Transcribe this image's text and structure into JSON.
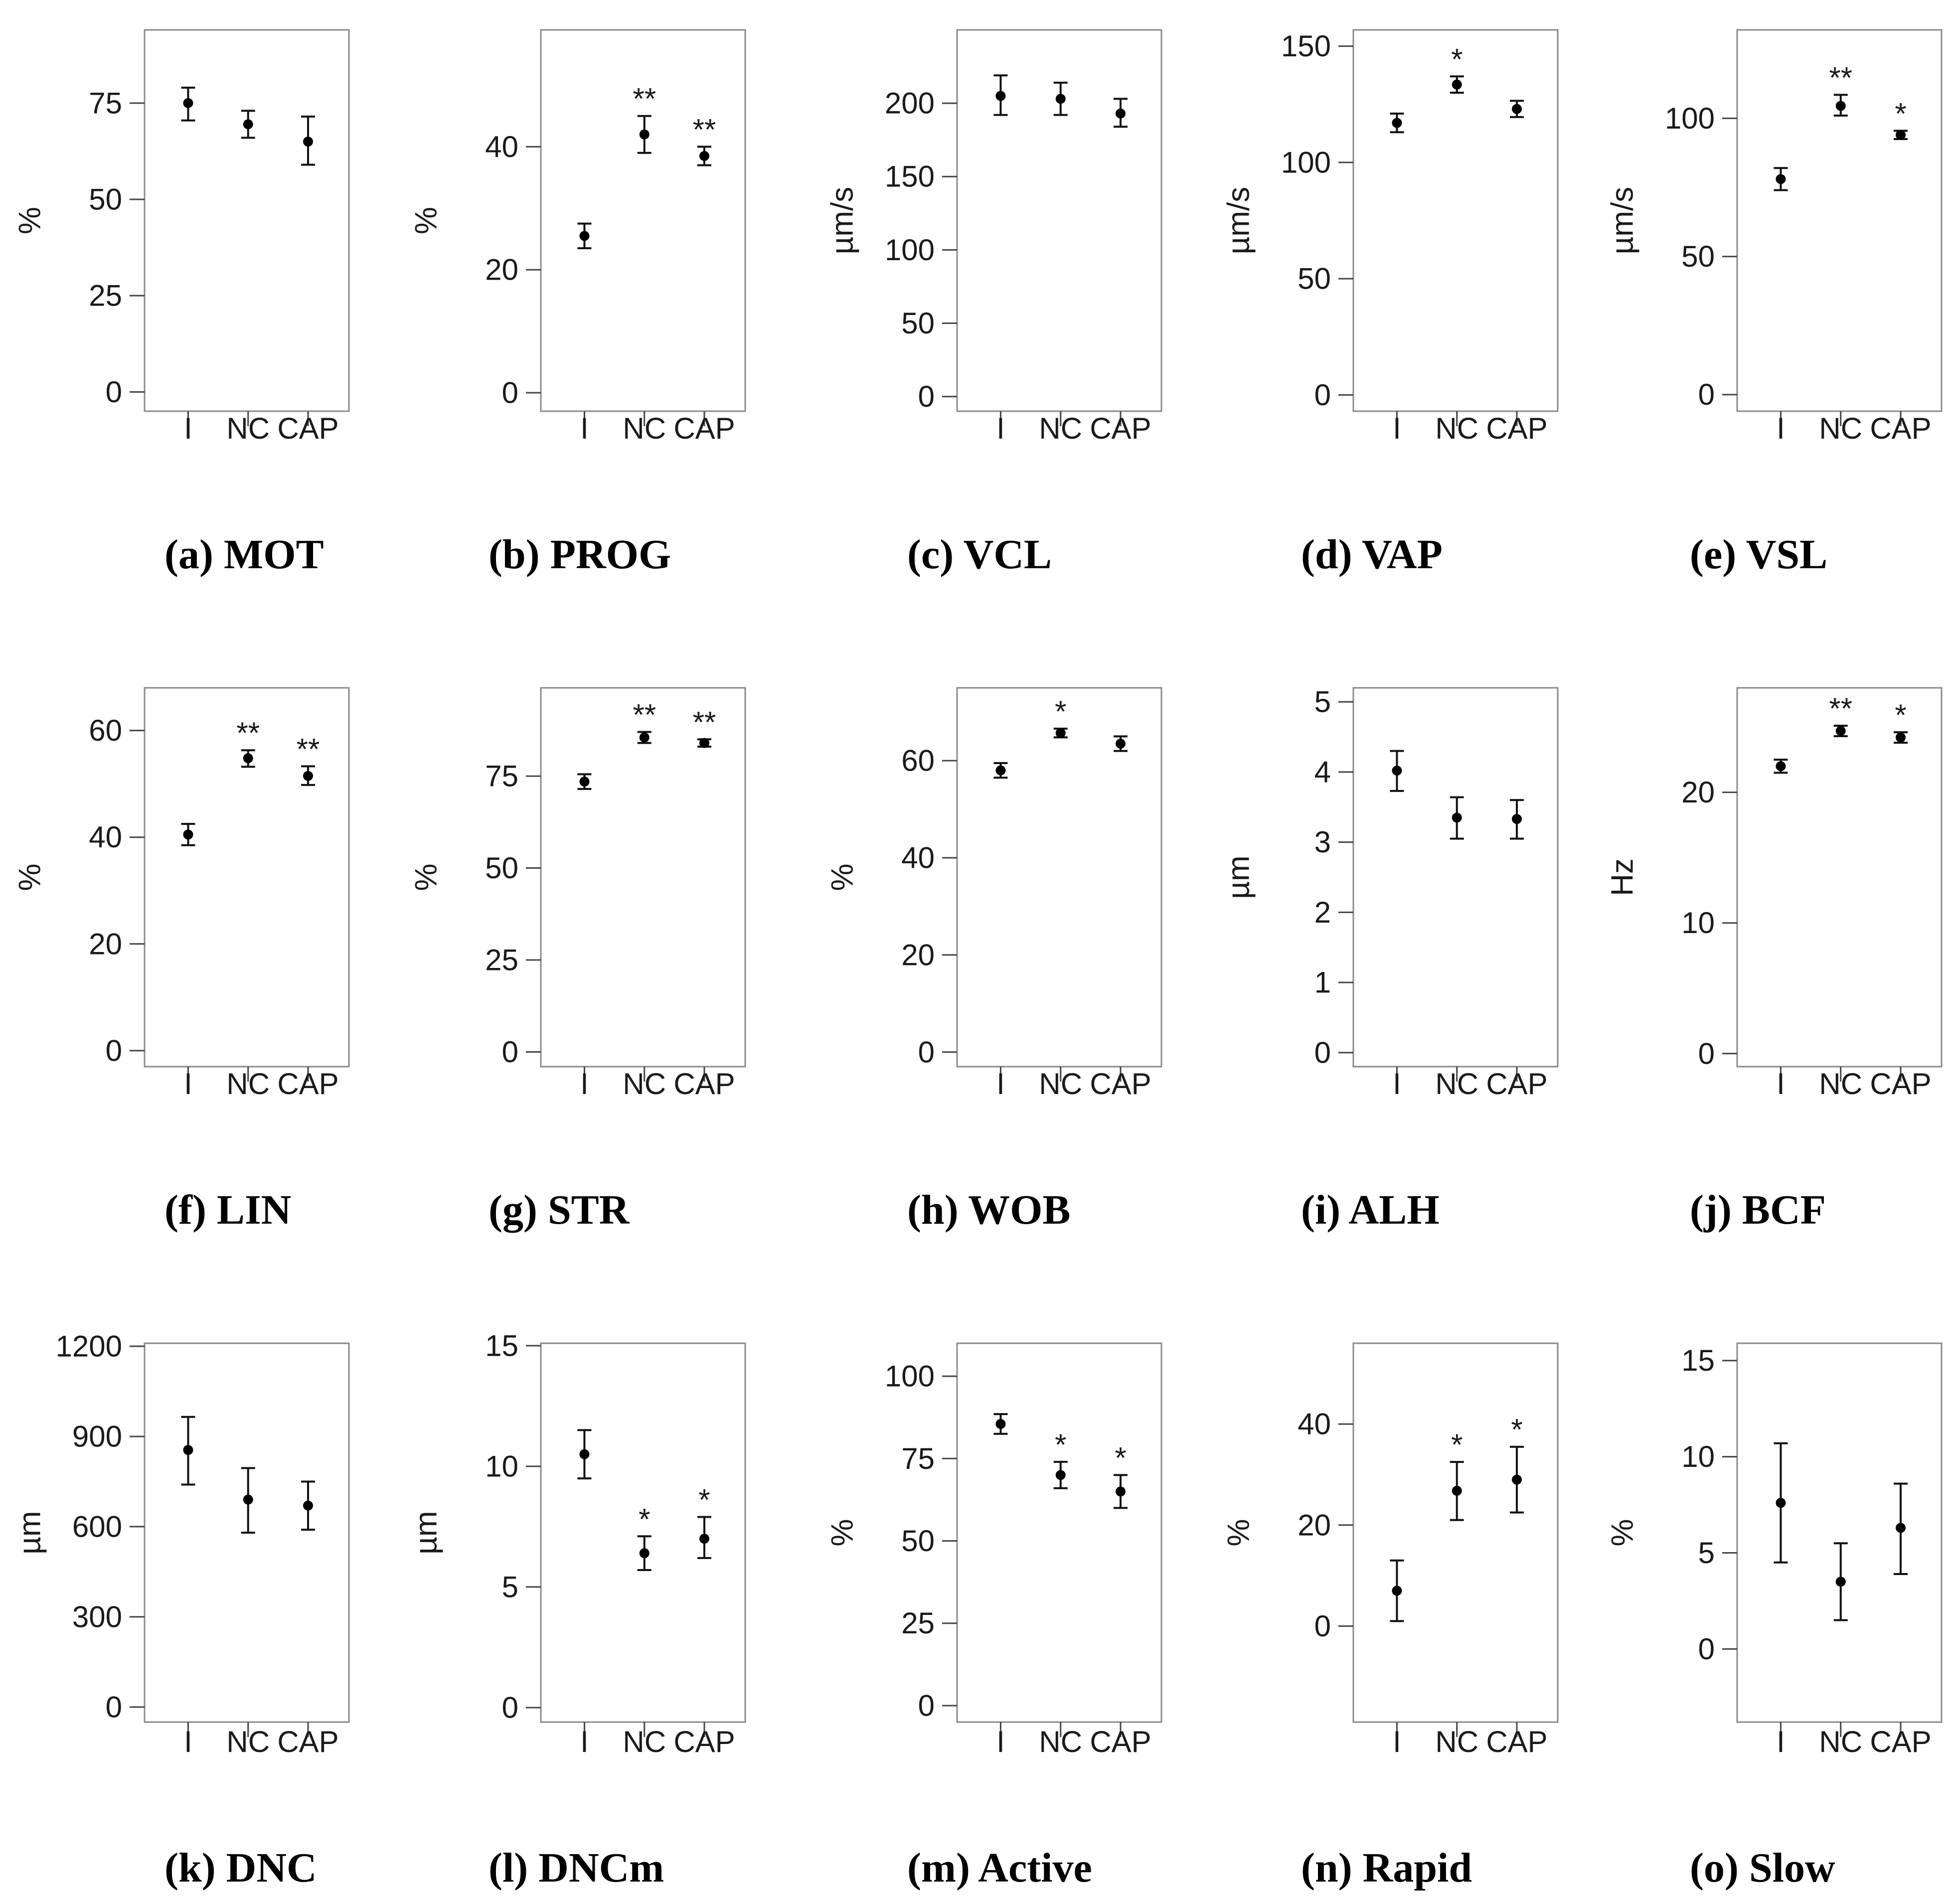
{
  "style": {
    "point_color": "#000000",
    "frame_color": "#8a8a8a",
    "text_color": "#1a1a1a"
  },
  "chart_data": [
    {
      "id": "mot",
      "type": "scatter",
      "caption": "(a) MOT",
      "ylabel": "%",
      "categories": [
        "I",
        "NC",
        "CAP"
      ],
      "ylim": [
        -5,
        94
      ],
      "yticks": [
        0,
        25,
        50,
        75
      ],
      "values": [
        75,
        69.5,
        65
      ],
      "err_low": [
        70.5,
        66,
        59
      ],
      "err_high": [
        79,
        73,
        71.5
      ],
      "sig": [
        "",
        "",
        ""
      ]
    },
    {
      "id": "prog",
      "type": "scatter",
      "caption": "(b) PROG",
      "ylabel": "%",
      "categories": [
        "I",
        "NC",
        "CAP"
      ],
      "ylim": [
        -3,
        59
      ],
      "yticks": [
        0,
        20,
        40
      ],
      "values": [
        25.5,
        42,
        38.5
      ],
      "err_low": [
        23.5,
        39,
        37
      ],
      "err_high": [
        27.5,
        45,
        40
      ],
      "sig": [
        "",
        "**",
        "**"
      ]
    },
    {
      "id": "vcl",
      "type": "scatter",
      "caption": "(c) VCL",
      "ylabel": "µm/s",
      "categories": [
        "I",
        "NC",
        "CAP"
      ],
      "ylim": [
        -10,
        250
      ],
      "yticks": [
        0,
        50,
        100,
        150,
        200
      ],
      "values": [
        205,
        203,
        193
      ],
      "err_low": [
        192,
        192,
        184
      ],
      "err_high": [
        219,
        214,
        203
      ],
      "sig": [
        "",
        "",
        ""
      ]
    },
    {
      "id": "vap",
      "type": "scatter",
      "caption": "(d) VAP",
      "ylabel": "µm/s",
      "categories": [
        "I",
        "NC",
        "CAP"
      ],
      "ylim": [
        -7,
        157
      ],
      "yticks": [
        0,
        50,
        100,
        150
      ],
      "values": [
        117,
        133.5,
        123
      ],
      "err_low": [
        113,
        130,
        119.5
      ],
      "err_high": [
        121,
        137,
        126.5
      ],
      "sig": [
        "",
        "*",
        ""
      ]
    },
    {
      "id": "vsl",
      "type": "scatter",
      "caption": "(e) VSL",
      "ylabel": "µm/s",
      "categories": [
        "I",
        "NC",
        "CAP"
      ],
      "ylim": [
        -6,
        132
      ],
      "yticks": [
        0,
        50,
        100
      ],
      "values": [
        78,
        104.5,
        94
      ],
      "err_low": [
        74,
        101,
        92.5
      ],
      "err_high": [
        82,
        108.5,
        95.5
      ],
      "sig": [
        "",
        "**",
        "*"
      ]
    },
    {
      "id": "lin",
      "type": "scatter",
      "caption": "(f) LIN",
      "ylabel": "%",
      "categories": [
        "I",
        "NC",
        "CAP"
      ],
      "ylim": [
        -3,
        68
      ],
      "yticks": [
        0,
        20,
        40,
        60
      ],
      "values": [
        40.5,
        54.8,
        51.5
      ],
      "err_low": [
        38.5,
        53.2,
        49.8
      ],
      "err_high": [
        42.5,
        56.3,
        53.3
      ],
      "sig": [
        "",
        "**",
        "**"
      ]
    },
    {
      "id": "str",
      "type": "scatter",
      "caption": "(g) STR",
      "ylabel": "%",
      "categories": [
        "I",
        "NC",
        "CAP"
      ],
      "ylim": [
        -4,
        99
      ],
      "yticks": [
        0,
        25,
        50,
        75
      ],
      "values": [
        73.5,
        85.5,
        84
      ],
      "err_low": [
        71.5,
        84,
        83
      ],
      "err_high": [
        75.5,
        87,
        85
      ],
      "sig": [
        "",
        "**",
        "**"
      ]
    },
    {
      "id": "wob",
      "type": "scatter",
      "caption": "(h) WOB",
      "ylabel": "%",
      "categories": [
        "I",
        "NC",
        "CAP"
      ],
      "ylim": [
        -3,
        75
      ],
      "yticks": [
        0,
        20,
        40,
        60
      ],
      "values": [
        58,
        65.7,
        63.5
      ],
      "err_low": [
        56.5,
        64.8,
        62
      ],
      "err_high": [
        59.5,
        66.6,
        65
      ],
      "sig": [
        "",
        "*",
        ""
      ]
    },
    {
      "id": "alh",
      "type": "scatter",
      "caption": "(i) ALH",
      "ylabel": "µm",
      "categories": [
        "I",
        "NC",
        "CAP"
      ],
      "ylim": [
        -0.2,
        5.2
      ],
      "yticks": [
        0,
        1,
        2,
        3,
        4,
        5
      ],
      "values": [
        4.02,
        3.35,
        3.33
      ],
      "err_low": [
        3.73,
        3.05,
        3.05
      ],
      "err_high": [
        4.3,
        3.64,
        3.6
      ],
      "sig": [
        "",
        "",
        ""
      ]
    },
    {
      "id": "bcf",
      "type": "scatter",
      "caption": "(j) BCF",
      "ylabel": "Hz",
      "categories": [
        "I",
        "NC",
        "CAP"
      ],
      "ylim": [
        -1,
        28
      ],
      "yticks": [
        0,
        10,
        20
      ],
      "values": [
        22,
        24.7,
        24.2
      ],
      "err_low": [
        21.5,
        24.3,
        23.8
      ],
      "err_high": [
        22.5,
        25.1,
        24.6
      ],
      "sig": [
        "",
        "**",
        "*"
      ]
    },
    {
      "id": "dnc",
      "type": "scatter",
      "caption": "(k) DNC",
      "ylabel": "µm",
      "categories": [
        "I",
        "NC",
        "CAP"
      ],
      "ylim": [
        -50,
        1210
      ],
      "yticks": [
        0,
        300,
        600,
        900,
        1200
      ],
      "values": [
        855,
        690,
        670
      ],
      "err_low": [
        740,
        580,
        590
      ],
      "err_high": [
        965,
        795,
        750
      ],
      "sig": [
        "",
        "",
        ""
      ]
    },
    {
      "id": "dncm",
      "type": "scatter",
      "caption": "(l) DNCm",
      "ylabel": "µm",
      "categories": [
        "I",
        "NC",
        "CAP"
      ],
      "ylim": [
        -0.6,
        15.1
      ],
      "yticks": [
        0,
        5,
        10,
        15
      ],
      "values": [
        10.5,
        6.4,
        7
      ],
      "err_low": [
        9.5,
        5.7,
        6.2
      ],
      "err_high": [
        11.5,
        7.1,
        7.9
      ],
      "sig": [
        "",
        "*",
        "*"
      ]
    },
    {
      "id": "active",
      "type": "scatter",
      "caption": "(m) Active",
      "ylabel": "%",
      "categories": [
        "I",
        "NC",
        "CAP"
      ],
      "ylim": [
        -5,
        110
      ],
      "yticks": [
        0,
        25,
        50,
        75,
        100
      ],
      "values": [
        85.5,
        70,
        65
      ],
      "err_low": [
        82.5,
        66,
        60
      ],
      "err_high": [
        88.5,
        74,
        70
      ],
      "sig": [
        "",
        "*",
        "*"
      ]
    },
    {
      "id": "rapid",
      "type": "scatter",
      "caption": "(n) Rapid",
      "ylabel": "%",
      "categories": [
        "I",
        "NC",
        "CAP"
      ],
      "ylim": [
        -19,
        56
      ],
      "yticks": [
        0,
        20,
        40
      ],
      "values": [
        7,
        26.8,
        29
      ],
      "err_low": [
        1,
        21,
        22.5
      ],
      "err_high": [
        13,
        32.5,
        35.5
      ],
      "sig": [
        "",
        "*",
        "*"
      ]
    },
    {
      "id": "slow",
      "type": "scatter",
      "caption": "(o) Slow",
      "ylabel": "%",
      "categories": [
        "I",
        "NC",
        "CAP"
      ],
      "ylim": [
        -3.8,
        15.9
      ],
      "yticks": [
        0,
        5,
        10,
        15
      ],
      "values": [
        7.6,
        3.5,
        6.3
      ],
      "err_low": [
        4.5,
        1.5,
        3.9
      ],
      "err_high": [
        10.7,
        5.5,
        8.6
      ],
      "sig": [
        "",
        "",
        ""
      ]
    }
  ]
}
